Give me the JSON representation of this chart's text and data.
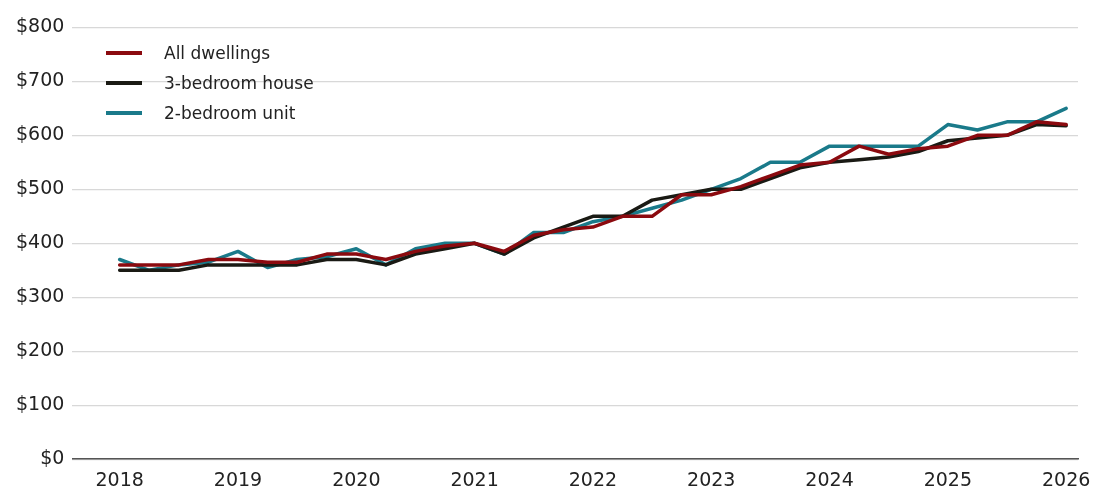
{
  "chart_data": {
    "type": "line",
    "x": [
      2018,
      2018.25,
      2018.5,
      2018.75,
      2019,
      2019.25,
      2019.5,
      2019.75,
      2020,
      2020.25,
      2020.5,
      2020.75,
      2021,
      2021.25,
      2021.5,
      2021.75,
      2022,
      2022.25,
      2022.5,
      2022.75,
      2023,
      2023.25,
      2023.5,
      2023.75,
      2024,
      2024.25,
      2024.5,
      2024.75,
      2025,
      2025.25,
      2025.5,
      2025.75,
      2026
    ],
    "series": [
      {
        "name": "All dwellings",
        "color": "#8b0a0f",
        "values": [
          360,
          360,
          360,
          370,
          370,
          365,
          365,
          380,
          380,
          370,
          385,
          395,
          400,
          385,
          415,
          425,
          430,
          450,
          450,
          490,
          490,
          505,
          525,
          545,
          550,
          580,
          565,
          575,
          580,
          600,
          600,
          625,
          620
        ]
      },
      {
        "name": "3-bedroom house",
        "color": "#1a1a14",
        "values": [
          350,
          350,
          350,
          360,
          360,
          360,
          360,
          370,
          370,
          360,
          380,
          390,
          400,
          380,
          410,
          430,
          450,
          450,
          480,
          490,
          500,
          500,
          520,
          540,
          550,
          555,
          560,
          570,
          590,
          595,
          600,
          620,
          618
        ]
      },
      {
        "name": "2-bedroom unit",
        "color": "#1a7a8a",
        "values": [
          370,
          350,
          360,
          365,
          385,
          355,
          370,
          375,
          390,
          360,
          390,
          400,
          400,
          380,
          420,
          420,
          440,
          450,
          465,
          480,
          500,
          520,
          550,
          550,
          580,
          580,
          580,
          580,
          620,
          610,
          625,
          625,
          650
        ]
      }
    ],
    "xlim": [
      2017.6,
      2026.1
    ],
    "xticks": [
      2018,
      2019,
      2020,
      2021,
      2022,
      2023,
      2024,
      2025,
      2026
    ],
    "ylim": [
      0,
      800
    ],
    "yticks": [
      {
        "value": 0,
        "label": "$0"
      },
      {
        "value": 100,
        "label": "$100"
      },
      {
        "value": 200,
        "label": "$200"
      },
      {
        "value": 300,
        "label": "$300"
      },
      {
        "value": 400,
        "label": "$400"
      },
      {
        "value": 500,
        "label": "$500"
      },
      {
        "value": 600,
        "label": "$600"
      },
      {
        "value": 700,
        "label": "$700"
      },
      {
        "value": 800,
        "label": "$800"
      }
    ],
    "grid": "y",
    "legend": "top left",
    "marker": "none",
    "line_style": "solid"
  }
}
